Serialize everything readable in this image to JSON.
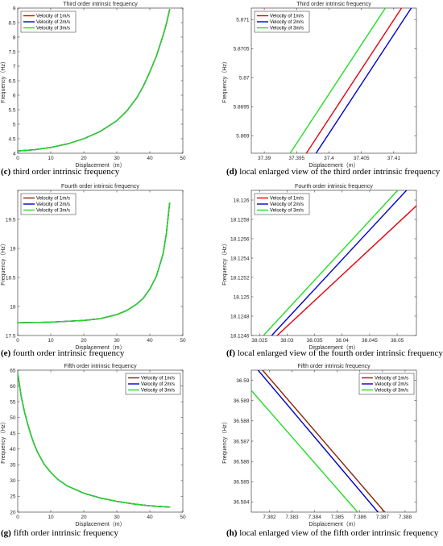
{
  "chart_data": [
    {
      "id": "c",
      "type": "line",
      "title": "Third order intrinsic frequency",
      "xlabel": "Displacement（m）",
      "ylabel": "Frequency（Hz）",
      "caption_label": "(c)",
      "caption_text": " third order intrinsic frequency",
      "xlim": [
        0,
        50
      ],
      "ylim": [
        4,
        9
      ],
      "xticks": [
        0,
        10,
        20,
        30,
        40,
        50
      ],
      "yticks": [
        4,
        4.5,
        5,
        5.5,
        6,
        6.5,
        7,
        7.5,
        8,
        8.5,
        9
      ],
      "legend": "top-left",
      "series": [
        {
          "name": "Velocity of 1m/s",
          "color": "#e8000b",
          "x": [
            0,
            5,
            10,
            15,
            20,
            25,
            30,
            33,
            36,
            38,
            40,
            42,
            44,
            45,
            46
          ],
          "y": [
            4.08,
            4.12,
            4.2,
            4.32,
            4.5,
            4.75,
            5.12,
            5.45,
            5.9,
            6.3,
            6.8,
            7.35,
            8.05,
            8.45,
            8.95
          ]
        },
        {
          "name": "Velocity of 2m/s",
          "color": "#0000cc",
          "x": [
            0,
            5,
            10,
            15,
            20,
            25,
            30,
            33,
            36,
            38,
            40,
            42,
            44,
            45,
            46
          ],
          "y": [
            4.08,
            4.12,
            4.2,
            4.32,
            4.5,
            4.75,
            5.12,
            5.45,
            5.9,
            6.3,
            6.8,
            7.35,
            8.05,
            8.45,
            8.95
          ]
        },
        {
          "name": "Velocity of 3m/s",
          "color": "#22dd22",
          "x": [
            0,
            5,
            10,
            15,
            20,
            25,
            30,
            33,
            36,
            38,
            40,
            42,
            44,
            45,
            46
          ],
          "y": [
            4.08,
            4.12,
            4.2,
            4.32,
            4.5,
            4.75,
            5.12,
            5.45,
            5.9,
            6.3,
            6.8,
            7.35,
            8.05,
            8.45,
            8.95
          ]
        }
      ]
    },
    {
      "id": "d",
      "type": "line",
      "title": "Third order intrinsic frequency",
      "xlabel": "Displacement（m）",
      "ylabel": "Frequency（Hz）",
      "caption_label": "(d)",
      "caption_text": " local enlarged view of the third order intrinsic frequency",
      "xlim": [
        37.388,
        37.4135
      ],
      "ylim": [
        5.8687,
        5.8712
      ],
      "xticks": [
        37.39,
        37.395,
        37.4,
        37.405,
        37.41
      ],
      "yticks": [
        5.869,
        5.8695,
        5.87,
        5.8705,
        5.871
      ],
      "legend": "top-left",
      "series": [
        {
          "name": "Velocity of 1m/s",
          "color": "#e8000b",
          "x": [
            37.3965,
            37.4112
          ],
          "y": [
            5.8687,
            5.8712
          ]
        },
        {
          "name": "Velocity of 2m/s",
          "color": "#0000cc",
          "x": [
            37.398,
            37.4127
          ],
          "y": [
            5.8687,
            5.8712
          ]
        },
        {
          "name": "Velocity of 3m/s",
          "color": "#22dd22",
          "x": [
            37.394,
            37.4087
          ],
          "y": [
            5.8687,
            5.8712
          ]
        }
      ]
    },
    {
      "id": "e",
      "type": "line",
      "title": "Fourth order intrinsic frequency",
      "xlabel": "Displacement（m）",
      "ylabel": "Frequency（Hz）",
      "caption_label": "(e)",
      "caption_text": " fourth order intrinsic frequency",
      "xlim": [
        0,
        50
      ],
      "ylim": [
        17.5,
        20
      ],
      "xticks": [
        0,
        10,
        20,
        30,
        40,
        50
      ],
      "yticks": [
        17.5,
        18,
        18.5,
        19,
        19.5
      ],
      "legend": "top-left",
      "series": [
        {
          "name": "Velocity of 1m/s",
          "color": "#8b2500",
          "x": [
            0,
            10,
            20,
            25,
            30,
            33,
            36,
            38,
            40,
            42,
            44,
            45,
            46
          ],
          "y": [
            17.72,
            17.73,
            17.76,
            17.79,
            17.86,
            17.93,
            18.04,
            18.14,
            18.3,
            18.52,
            18.9,
            19.25,
            19.78
          ]
        },
        {
          "name": "Velocity of 2m/s",
          "color": "#0000cc",
          "x": [
            0,
            10,
            20,
            25,
            30,
            33,
            36,
            38,
            40,
            42,
            44,
            45,
            46
          ],
          "y": [
            17.72,
            17.73,
            17.76,
            17.79,
            17.86,
            17.93,
            18.04,
            18.14,
            18.3,
            18.52,
            18.9,
            19.25,
            19.78
          ]
        },
        {
          "name": "Velocity of 3m/s",
          "color": "#22dd22",
          "x": [
            0,
            10,
            20,
            25,
            30,
            33,
            36,
            38,
            40,
            42,
            44,
            45,
            46
          ],
          "y": [
            17.72,
            17.73,
            17.76,
            17.79,
            17.86,
            17.93,
            18.04,
            18.14,
            18.3,
            18.52,
            18.9,
            19.25,
            19.78
          ]
        }
      ]
    },
    {
      "id": "f",
      "type": "line",
      "title": "Fourth order intrinsic frequency",
      "xlabel": "Displacement（m）",
      "ylabel": "Frequency（Hz）",
      "caption_label": "(f)",
      "caption_text": " local enlarged view of the fourth order intrinsic frequency",
      "xlim": [
        38.0235,
        38.0535
      ],
      "ylim": [
        18.1246,
        18.1261
      ],
      "xticks": [
        38.025,
        38.03,
        38.035,
        38.04,
        38.045,
        38.05
      ],
      "yticks": [
        18.1246,
        18.1248,
        18.125,
        18.1252,
        18.1254,
        18.1256,
        18.1258,
        18.126
      ],
      "legend": "top-left",
      "series": [
        {
          "name": "Velocity of 1m/s",
          "color": "#e8000b",
          "x": [
            38.0282,
            38.0535
          ],
          "y": [
            18.1246,
            18.12594
          ]
        },
        {
          "name": "Velocity of 2m/s",
          "color": "#0000cc",
          "x": [
            38.0272,
            38.0517
          ],
          "y": [
            18.1246,
            18.1261
          ]
        },
        {
          "name": "Velocity of 3m/s",
          "color": "#22dd22",
          "x": [
            38.0257,
            38.0501
          ],
          "y": [
            18.1246,
            18.1261
          ]
        }
      ]
    },
    {
      "id": "g",
      "type": "line",
      "title": "Fifth order intrinsic frequency",
      "xlabel": "Displacement（m）",
      "ylabel": "Frequency（Hz）",
      "caption_label": "(g)",
      "caption_text": " fifth order intrinsic frequency",
      "xlim": [
        0,
        50
      ],
      "ylim": [
        20,
        65
      ],
      "xticks": [
        0,
        10,
        20,
        30,
        40,
        50
      ],
      "yticks": [
        20,
        25,
        30,
        35,
        40,
        45,
        50,
        55,
        60,
        65
      ],
      "legend": "top-right",
      "series": [
        {
          "name": "Velocity of 1m/s",
          "color": "#8b2500",
          "x": [
            0,
            1,
            2,
            3,
            4,
            5,
            6,
            8,
            10,
            12,
            15,
            20,
            25,
            30,
            35,
            40,
            46
          ],
          "y": [
            64,
            57,
            52,
            48,
            44.5,
            41.5,
            39,
            35.2,
            32.6,
            30.5,
            28.3,
            26,
            24.5,
            23.4,
            22.6,
            22,
            21.6
          ]
        },
        {
          "name": "Velocity of 2m/s",
          "color": "#0000cc",
          "x": [
            0,
            1,
            2,
            3,
            4,
            5,
            6,
            8,
            10,
            12,
            15,
            20,
            25,
            30,
            35,
            40,
            46
          ],
          "y": [
            64,
            57,
            52,
            48,
            44.5,
            41.5,
            39,
            35.2,
            32.6,
            30.5,
            28.3,
            26,
            24.5,
            23.4,
            22.6,
            22,
            21.6
          ]
        },
        {
          "name": "Velocity of 3m/s",
          "color": "#22dd22",
          "x": [
            0,
            1,
            2,
            3,
            4,
            5,
            6,
            8,
            10,
            12,
            15,
            20,
            25,
            30,
            35,
            40,
            46
          ],
          "y": [
            64,
            57,
            52,
            48,
            44.5,
            41.5,
            39,
            35.2,
            32.6,
            30.5,
            28.3,
            26,
            24.5,
            23.4,
            22.6,
            22,
            21.6
          ]
        }
      ]
    },
    {
      "id": "h",
      "type": "line",
      "title": "Fifth order intrinsic frequency",
      "xlabel": "Displacement（m）",
      "ylabel": "Frequency（Hz）",
      "caption_label": "(h)",
      "caption_text": " local enlarged view of the fifth order intrinsic frequency",
      "xlim": [
        7.3812,
        7.3885
      ],
      "ylim": [
        36.5835,
        36.5905
      ],
      "xticks": [
        7.382,
        7.383,
        7.384,
        7.385,
        7.386,
        7.387,
        7.388
      ],
      "yticks": [
        36.584,
        36.585,
        36.586,
        36.587,
        36.588,
        36.589,
        36.59
      ],
      "legend": "top-right",
      "series": [
        {
          "name": "Velocity of 1m/s",
          "color": "#8b2500",
          "x": [
            7.3817,
            7.3871
          ],
          "y": [
            36.5905,
            36.5835
          ]
        },
        {
          "name": "Velocity of 2m/s",
          "color": "#0000cc",
          "x": [
            7.3815,
            7.3868
          ],
          "y": [
            36.5905,
            36.5835
          ]
        },
        {
          "name": "Velocity of 3m/s",
          "color": "#22dd22",
          "x": [
            7.3812,
            7.3859
          ],
          "y": [
            36.5895,
            36.5835
          ]
        }
      ]
    }
  ]
}
